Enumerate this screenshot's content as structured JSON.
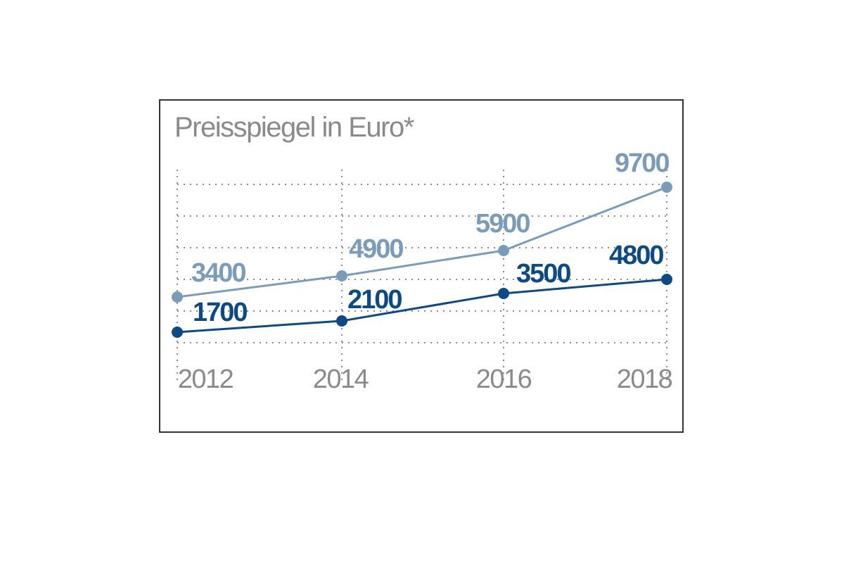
{
  "chart_data": {
    "type": "line",
    "title": "Preisspiegel in Euro*",
    "categories": [
      "2012",
      "2014",
      "2016",
      "2018"
    ],
    "x": [
      2012,
      2014,
      2016,
      2018
    ],
    "series": [
      {
        "values": [
          3400,
          4900,
          5900,
          9700
        ],
        "labels": [
          "3400",
          "4900",
          "5900",
          "9700"
        ],
        "color": "#7a9cbb"
      },
      {
        "values": [
          1700,
          2100,
          3500,
          4800
        ],
        "labels": [
          "1700",
          "2100",
          "3500",
          "4800"
        ],
        "color": "#0b4a86"
      }
    ],
    "grid": true,
    "legend": "none"
  }
}
